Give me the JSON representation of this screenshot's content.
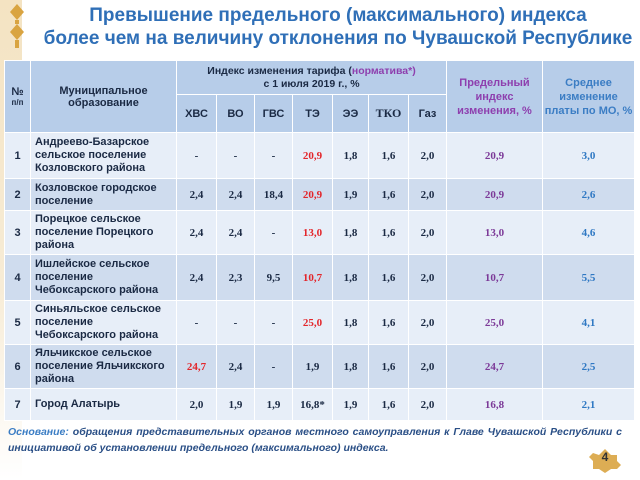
{
  "title_line1": "Превышение предельного (максимального) индекса",
  "title_line2": "более чем на величину отклонения по Чувашской Республике",
  "header": {
    "num": "№",
    "num_sub": "п/п",
    "municipality": "Муниципальное образование",
    "index_title_pre": "Индекс изменения тарифа (",
    "index_title_norm": "норматива*)",
    "index_title_post": "с 1 июля 2019 г., %",
    "columns": [
      "ХВС",
      "ВО",
      "ГВС",
      "ТЭ",
      "ЭЭ",
      "ТКО",
      "Газ"
    ],
    "limit_index": "Предельный индекс изменения, %",
    "avg_change": "Среднее изменение платы по МО, %"
  },
  "rows": [
    {
      "num": "1",
      "name": "Андреево-Базарское сельское поселение Козловского района",
      "values": [
        "-",
        "-",
        "-",
        "20,9",
        "1,8",
        "1,6",
        "2,0"
      ],
      "limit": "20,9",
      "avg": "3,0",
      "red": [
        3
      ]
    },
    {
      "num": "2",
      "name": "Козловское городское поселение",
      "values": [
        "2,4",
        "2,4",
        "18,4",
        "20,9",
        "1,9",
        "1,6",
        "2,0"
      ],
      "limit": "20,9",
      "avg": "2,6",
      "red": [
        3
      ]
    },
    {
      "num": "3",
      "name": "Порецкое сельское поселение Порецкого района",
      "values": [
        "2,4",
        "2,4",
        "-",
        "13,0",
        "1,8",
        "1,6",
        "2,0"
      ],
      "limit": "13,0",
      "avg": "4,6",
      "red": [
        3
      ]
    },
    {
      "num": "4",
      "name": "Ишлейское сельское поселение Чебоксарского района",
      "values": [
        "2,4",
        "2,3",
        "9,5",
        "10,7",
        "1,8",
        "1,6",
        "2,0"
      ],
      "limit": "10,7",
      "avg": "5,5",
      "red": [
        3
      ]
    },
    {
      "num": "5",
      "name": "Синьяльское сельское поселение Чебоксарского района",
      "values": [
        "-",
        "-",
        "-",
        "25,0",
        "1,8",
        "1,6",
        "2,0"
      ],
      "limit": "25,0",
      "avg": "4,1",
      "red": [
        3
      ]
    },
    {
      "num": "6",
      "name": "Яльчикское сельское поселение Яльчикского района",
      "values": [
        "24,7",
        "2,4",
        "-",
        "1,9",
        "1,8",
        "1,6",
        "2,0"
      ],
      "limit": "24,7",
      "avg": "2,5",
      "red": [
        0
      ]
    },
    {
      "num": "7",
      "name": "Город Алатырь",
      "values": [
        "2,0",
        "1,9",
        "1,9",
        "16,8*",
        "1,9",
        "1,6",
        "2,0"
      ],
      "limit": "16,8",
      "avg": "2,1",
      "red": []
    }
  ],
  "footer_label": "Основание:",
  "footer_text": " обращения представительных органов местного самоуправления к Главе Чувашской Республики с инициативой об установлении предельного (максимального) индекса.",
  "page_number": "4",
  "colors": {
    "title": "#2f6fb7",
    "header_bg": "#b7cde9",
    "red": "#e3262b",
    "purple": "#7c3a98",
    "blue": "#2f78c3"
  }
}
